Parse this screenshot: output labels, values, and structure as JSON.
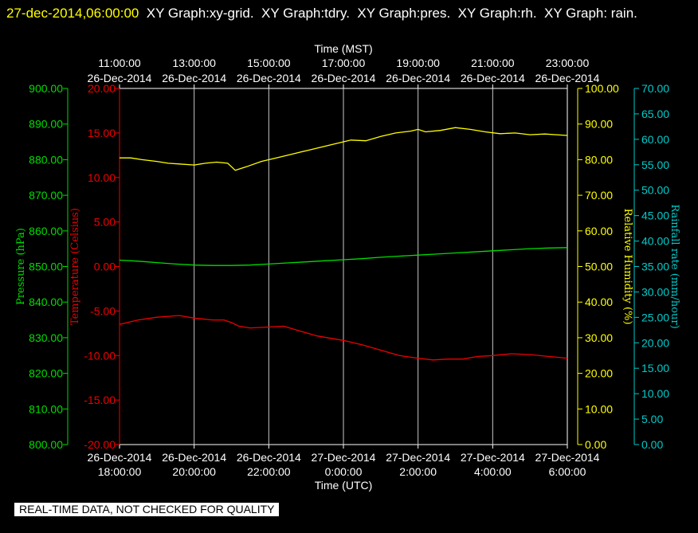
{
  "header": {
    "timestamp": "27-dec-2014,06:00:00",
    "text": "  XY Graph:xy-grid.  XY Graph:tdry.  XY Graph:pres.  XY Graph:rh.  XY Graph: rain."
  },
  "footer": {
    "notice": "REAL-TIME DATA, NOT CHECKED FOR QUALITY"
  },
  "colors": {
    "pressure": "#00dd00",
    "temperature": "#ee0000",
    "humidity": "#ffff00",
    "rain": "#00cccc",
    "grid": "#c8c8c8",
    "axis": "#ffffff"
  },
  "chart_data": {
    "type": "line",
    "x_top_title": "Time (MST)",
    "x_bottom_title": "Time (UTC)",
    "x_range_hours_utc": [
      18,
      30
    ],
    "x_top_ticks": [
      {
        "time": "11:00:00",
        "date": "26-Dec-2014"
      },
      {
        "time": "13:00:00",
        "date": "26-Dec-2014"
      },
      {
        "time": "15:00:00",
        "date": "26-Dec-2014"
      },
      {
        "time": "17:00:00",
        "date": "26-Dec-2014"
      },
      {
        "time": "19:00:00",
        "date": "26-Dec-2014"
      },
      {
        "time": "21:00:00",
        "date": "26-Dec-2014"
      },
      {
        "time": "23:00:00",
        "date": "26-Dec-2014"
      }
    ],
    "x_bottom_ticks": [
      {
        "date": "26-Dec-2014",
        "time": "18:00:00"
      },
      {
        "date": "26-Dec-2014",
        "time": "20:00:00"
      },
      {
        "date": "26-Dec-2014",
        "time": "22:00:00"
      },
      {
        "date": "27-Dec-2014",
        "time": "0:00:00"
      },
      {
        "date": "27-Dec-2014",
        "time": "2:00:00"
      },
      {
        "date": "27-Dec-2014",
        "time": "4:00:00"
      },
      {
        "date": "27-Dec-2014",
        "time": "6:00:00"
      }
    ],
    "axes": {
      "pressure": {
        "label": "Pressure (hPa)",
        "range": [
          800,
          900
        ],
        "ticks": [
          "900.00",
          "890.00",
          "880.00",
          "870.00",
          "860.00",
          "850.00",
          "840.00",
          "830.00",
          "820.00",
          "810.00",
          "800.00"
        ]
      },
      "temperature": {
        "label": "Temperature (Celsius)",
        "range": [
          -20,
          20
        ],
        "ticks": [
          "20.00",
          "15.00",
          "10.00",
          "5.00",
          "0.00",
          "-5.00",
          "-10.00",
          "-15.00",
          "-20.00"
        ]
      },
      "humidity": {
        "label": "Relative Humidity (%)",
        "range": [
          0,
          100
        ],
        "ticks": [
          "100.00",
          "90.00",
          "80.00",
          "70.00",
          "60.00",
          "50.00",
          "40.00",
          "30.00",
          "20.00",
          "10.00",
          "0.00"
        ]
      },
      "rain": {
        "label": "Rainfall rate (mm/hour)",
        "range": [
          0,
          70
        ],
        "ticks": [
          "70.00",
          "65.00",
          "60.00",
          "55.00",
          "50.00",
          "45.00",
          "40.00",
          "35.00",
          "30.00",
          "25.00",
          "20.00",
          "15.00",
          "10.00",
          "5.00",
          "0.00"
        ]
      }
    },
    "series": [
      {
        "name": "Pressure",
        "axis": "pressure",
        "x": [
          18,
          18.5,
          19,
          19.5,
          20,
          20.5,
          21,
          21.5,
          22,
          22.5,
          23,
          23.5,
          24,
          24.5,
          25,
          25.5,
          26,
          26.5,
          27,
          27.5,
          28,
          28.5,
          29,
          29.5,
          30
        ],
        "y": [
          851.8,
          851.5,
          851.1,
          850.7,
          850.4,
          850.3,
          850.3,
          850.4,
          850.7,
          851.0,
          851.3,
          851.6,
          851.9,
          852.2,
          852.6,
          852.9,
          853.2,
          853.5,
          853.8,
          854.1,
          854.4,
          854.7,
          855.0,
          855.2,
          855.3
        ]
      },
      {
        "name": "Temperature",
        "axis": "temperature",
        "x": [
          18,
          18.5,
          19,
          19.3,
          19.6,
          20,
          20.5,
          20.8,
          21,
          21.2,
          21.5,
          22,
          22.4,
          22.8,
          23.3,
          24,
          24.5,
          25,
          25.5,
          26,
          26.4,
          26.8,
          27.2,
          27.6,
          28,
          28.5,
          29,
          29.5,
          30
        ],
        "y": [
          -6.5,
          -6.0,
          -5.7,
          -5.6,
          -5.5,
          -5.8,
          -6.0,
          -6.0,
          -6.3,
          -6.7,
          -6.9,
          -6.8,
          -6.7,
          -7.2,
          -7.8,
          -8.3,
          -8.8,
          -9.4,
          -10.0,
          -10.3,
          -10.5,
          -10.4,
          -10.4,
          -10.1,
          -10.0,
          -9.8,
          -9.9,
          -10.1,
          -10.3
        ]
      },
      {
        "name": "Relative Humidity",
        "axis": "humidity",
        "x": [
          18,
          18.3,
          18.6,
          19,
          19.3,
          19.6,
          20,
          20.3,
          20.6,
          20.9,
          21.0,
          21.1,
          21.4,
          21.8,
          22.2,
          22.6,
          23,
          23.4,
          23.8,
          24.2,
          24.6,
          25,
          25.4,
          25.8,
          26.0,
          26.2,
          26.6,
          27,
          27.4,
          27.8,
          28.2,
          28.6,
          29,
          29.4,
          29.7,
          30
        ],
        "y": [
          80.5,
          80.5,
          80.0,
          79.5,
          79.0,
          78.8,
          78.5,
          79.0,
          79.3,
          79.0,
          78.0,
          77.0,
          78.0,
          79.5,
          80.5,
          81.5,
          82.5,
          83.5,
          84.5,
          85.5,
          85.3,
          86.5,
          87.5,
          88.0,
          88.5,
          87.8,
          88.2,
          89.0,
          88.5,
          87.8,
          87.3,
          87.5,
          87.0,
          87.2,
          87.0,
          86.8
        ]
      },
      {
        "name": "Rainfall rate",
        "axis": "rain",
        "x": [],
        "y": []
      }
    ]
  }
}
